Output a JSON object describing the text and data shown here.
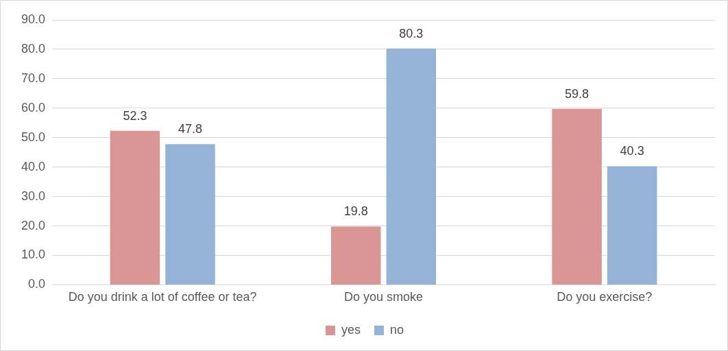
{
  "chart_data": {
    "type": "bar",
    "categories": [
      "Do you drink a lot of coffee or tea?",
      "Do you smoke",
      "Do you exercise?"
    ],
    "series": [
      {
        "name": "yes",
        "color": "#d99694",
        "values": [
          52.3,
          19.8,
          59.8
        ]
      },
      {
        "name": "no",
        "color": "#95b3d7",
        "values": [
          47.8,
          80.3,
          40.3
        ]
      }
    ],
    "ylim": [
      0,
      90
    ],
    "yticks": [
      {
        "value": 0,
        "label": "0.0"
      },
      {
        "value": 10,
        "label": "10.0"
      },
      {
        "value": 20,
        "label": "20.0"
      },
      {
        "value": 30,
        "label": "30.0"
      },
      {
        "value": 40,
        "label": "40.0"
      },
      {
        "value": 50,
        "label": "50.0"
      },
      {
        "value": 60,
        "label": "60.0"
      },
      {
        "value": 70,
        "label": "70.0"
      },
      {
        "value": 80,
        "label": "80.0"
      },
      {
        "value": 90,
        "label": "90.0"
      }
    ],
    "grid": "y",
    "legend": "bottom",
    "data_labels": true
  }
}
